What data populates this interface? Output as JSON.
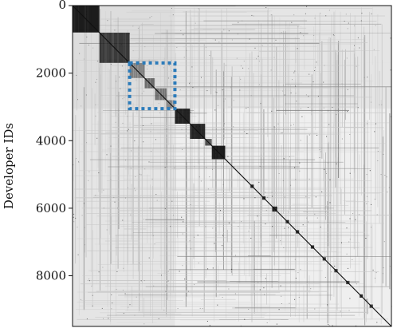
{
  "chart_data": {
    "type": "heatmap",
    "title": "",
    "xlabel": "",
    "ylabel": "Developer IDs",
    "ylim": [
      0,
      9500
    ],
    "xlim": [
      0,
      9500
    ],
    "y_ticks": [
      0,
      2000,
      4000,
      6000,
      8000
    ],
    "y_tick_labels": [
      "0",
      "2000",
      "4000",
      "6000",
      "8000"
    ],
    "x_tick_labels": [],
    "colors": {
      "background": "#efefef",
      "dense": "#111111",
      "medium": "#7a7a7a",
      "light": "#c8c8c8",
      "highlight": "#2b7bba"
    },
    "diagonal_blocks": [
      {
        "start": 0,
        "end": 800,
        "density": 0.95
      },
      {
        "start": 800,
        "end": 1700,
        "density": 0.8
      },
      {
        "start": 1700,
        "end": 2150,
        "density": 0.45
      },
      {
        "start": 2150,
        "end": 2450,
        "density": 0.55
      },
      {
        "start": 2450,
        "end": 2800,
        "density": 0.5
      },
      {
        "start": 2800,
        "end": 3050,
        "density": 0.4
      },
      {
        "start": 3050,
        "end": 3500,
        "density": 0.92
      },
      {
        "start": 3500,
        "end": 3950,
        "density": 0.9
      },
      {
        "start": 3950,
        "end": 4150,
        "density": 0.7
      },
      {
        "start": 4150,
        "end": 4550,
        "density": 0.95
      },
      {
        "start": 5300,
        "end": 5400,
        "density": 0.9
      },
      {
        "start": 5650,
        "end": 5750,
        "density": 0.9
      },
      {
        "start": 5950,
        "end": 6100,
        "density": 0.9
      },
      {
        "start": 6350,
        "end": 6450,
        "density": 0.85
      },
      {
        "start": 6650,
        "end": 6750,
        "density": 0.85
      },
      {
        "start": 7100,
        "end": 7200,
        "density": 0.85
      },
      {
        "start": 7450,
        "end": 7550,
        "density": 0.8
      },
      {
        "start": 7800,
        "end": 7900,
        "density": 0.8
      },
      {
        "start": 8150,
        "end": 8250,
        "density": 0.8
      },
      {
        "start": 8550,
        "end": 8650,
        "density": 0.85
      },
      {
        "start": 8850,
        "end": 8950,
        "density": 0.8
      }
    ],
    "highlight_box": {
      "x": [
        1700,
        3050
      ],
      "y": [
        1700,
        3050
      ]
    }
  }
}
